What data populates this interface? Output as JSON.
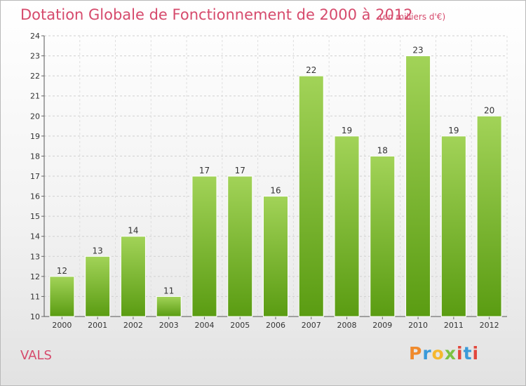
{
  "header": {
    "title": "Dotation Globale de Fonctionnement de 2000 à 2012",
    "subtitle": "(en milliers d'€)"
  },
  "footer": {
    "commune": "VALS",
    "logo_text": "Proxiti",
    "logo_colors": [
      "#f08a2c",
      "#3a9ad9",
      "#f5b82e",
      "#7cc242",
      "#e2473c",
      "#3a9ad9",
      "#e2473c"
    ]
  },
  "chart_data": {
    "type": "bar",
    "categories": [
      "2000",
      "2001",
      "2002",
      "2003",
      "2004",
      "2005",
      "2006",
      "2007",
      "2008",
      "2009",
      "2010",
      "2011",
      "2012"
    ],
    "values": [
      12,
      13,
      14,
      11,
      17,
      17,
      16,
      22,
      19,
      18,
      23,
      19,
      20
    ],
    "data_labels": [
      "12",
      "13",
      "14",
      "11",
      "17",
      "17",
      "16",
      "22",
      "19",
      "18",
      "23",
      "19",
      "20"
    ],
    "yticks": [
      10,
      11,
      12,
      13,
      14,
      15,
      16,
      17,
      18,
      19,
      20,
      21,
      22,
      23,
      24
    ],
    "ylim": [
      10,
      24
    ],
    "grid": true,
    "bar_color_top": "#a2d358",
    "bar_color_bottom": "#5a9c12",
    "bar_border": "#ffffff"
  }
}
